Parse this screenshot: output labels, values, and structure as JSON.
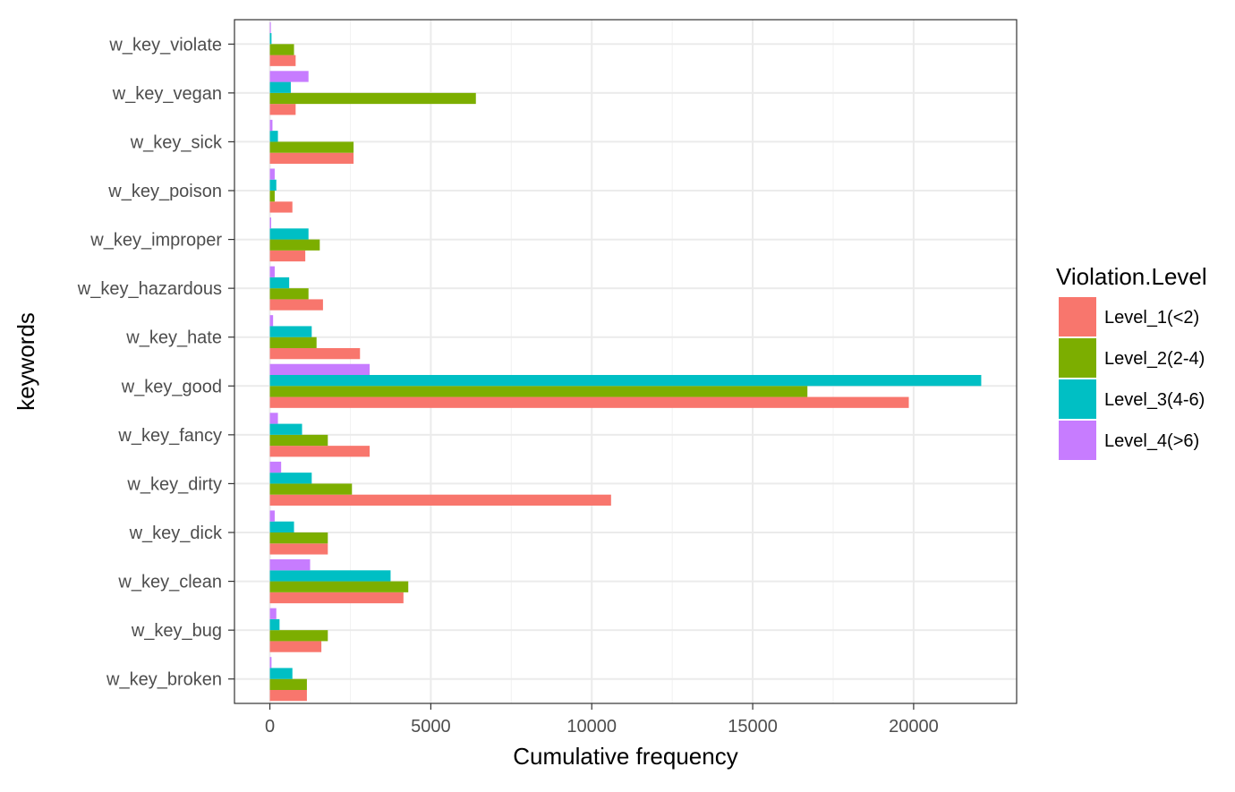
{
  "chart_data": {
    "type": "bar",
    "orientation": "horizontal",
    "position": "dodge",
    "xlabel": "Cumulative frequency",
    "ylabel": "keywords",
    "xlim": [
      -1100,
      23200
    ],
    "xticks": [
      "0",
      "5000",
      "10000",
      "15000",
      "20000"
    ],
    "xtick_values": [
      0,
      5000,
      10000,
      15000,
      20000
    ],
    "grid": true,
    "theme": "bw",
    "categories": [
      "w_key_violate",
      "w_key_vegan",
      "w_key_sick",
      "w_key_poison",
      "w_key_improper",
      "w_key_hazardous",
      "w_key_hate",
      "w_key_good",
      "w_key_fancy",
      "w_key_dirty",
      "w_key_dick",
      "w_key_clean",
      "w_key_bug",
      "w_key_broken"
    ],
    "legend": {
      "title": "Violation.Level",
      "placement": "right"
    },
    "series": [
      {
        "name": "Level_1(<2)",
        "color": "#F8766D",
        "values": [
          800,
          800,
          2600,
          700,
          1100,
          1650,
          2800,
          19850,
          3100,
          10600,
          1800,
          4150,
          1600,
          1150
        ]
      },
      {
        "name": "Level_2(2-4)",
        "color": "#7CAE00",
        "values": [
          750,
          6400,
          2600,
          150,
          1550,
          1200,
          1450,
          16700,
          1800,
          2550,
          1800,
          4300,
          1800,
          1150
        ]
      },
      {
        "name": "Level_3(4-6)",
        "color": "#00BFC4",
        "values": [
          50,
          650,
          250,
          200,
          1200,
          600,
          1300,
          22100,
          1000,
          1300,
          750,
          3750,
          300,
          700
        ]
      },
      {
        "name": "Level_4(>6)",
        "color": "#C77CFF",
        "values": [
          30,
          1200,
          80,
          150,
          40,
          150,
          100,
          3100,
          250,
          350,
          150,
          1250,
          200,
          50
        ]
      }
    ]
  }
}
